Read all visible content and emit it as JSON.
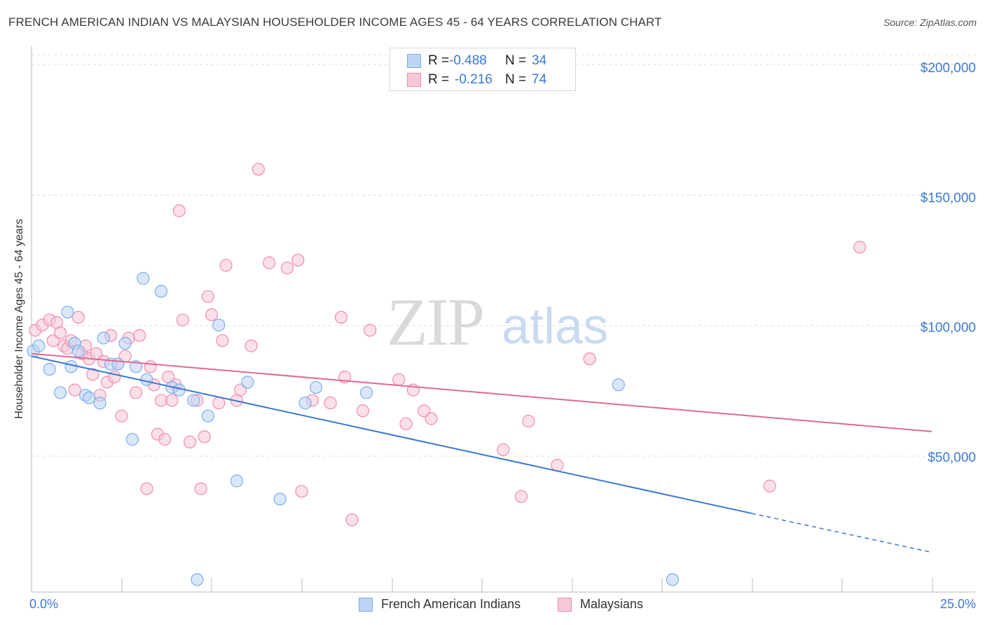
{
  "header": {
    "title": "FRENCH AMERICAN INDIAN VS MALAYSIAN HOUSEHOLDER INCOME AGES 45 - 64 YEARS CORRELATION CHART",
    "source": "Source: ZipAtlas.com"
  },
  "watermark": {
    "zip": "ZIP",
    "atlas": "atlas"
  },
  "legend": {
    "rows": [
      {
        "r_label": "R =",
        "r_value": "-0.488",
        "n_label": "N =",
        "n_value": "34",
        "color": "#7aaeea",
        "fill": "#bcd4f5"
      },
      {
        "r_label": "R =",
        "r_value": "-0.216",
        "n_label": "N =",
        "n_value": "74",
        "color": "#ef8cad",
        "fill": "#f8c7d6"
      }
    ]
  },
  "bottom_legend": {
    "series1": "French American Indians",
    "series2": "Malaysians"
  },
  "colors": {
    "blue": "#3a77d0",
    "blue_fill": "#bcd4f5",
    "pink": "#e0688f",
    "pink_fill": "#f8c7d6",
    "tick_text": "#3b79d2",
    "grid": "#dddddd"
  },
  "chart_data": {
    "type": "scatter",
    "title": "FRENCH AMERICAN INDIAN VS MALAYSIAN HOUSEHOLDER INCOME AGES 45 - 64 YEARS CORRELATION CHART",
    "xlabel": "",
    "ylabel": "Householder Income Ages 45 - 64 years",
    "xlim": [
      0,
      25
    ],
    "ylim": [
      0,
      205000
    ],
    "x_tick_labels": [
      "0.0%",
      "25.0%"
    ],
    "y_ticks": [
      50000,
      100000,
      150000,
      200000
    ],
    "y_tick_labels": [
      "$50,000",
      "$100,000",
      "$150,000",
      "$200,000"
    ],
    "grid": true,
    "series": [
      {
        "name": "French American Indians",
        "r": -0.488,
        "n": 34,
        "trend": {
          "x0": 0,
          "y0": 89000,
          "x1": 20,
          "y1": 28500,
          "dash_to_x": 25,
          "dash_to_y": 13500
        },
        "points": [
          [
            0.05,
            91000
          ],
          [
            0.2,
            93000
          ],
          [
            0.5,
            84000
          ],
          [
            0.8,
            75000
          ],
          [
            1.0,
            106000
          ],
          [
            1.2,
            94000
          ],
          [
            1.1,
            85000
          ],
          [
            1.3,
            91000
          ],
          [
            1.5,
            74000
          ],
          [
            1.6,
            73000
          ],
          [
            1.9,
            71000
          ],
          [
            2.0,
            96000
          ],
          [
            2.2,
            86000
          ],
          [
            2.4,
            86000
          ],
          [
            2.6,
            94000
          ],
          [
            2.8,
            57000
          ],
          [
            2.9,
            85000
          ],
          [
            3.1,
            119000
          ],
          [
            3.2,
            80000
          ],
          [
            3.6,
            114000
          ],
          [
            3.9,
            77000
          ],
          [
            4.1,
            76000
          ],
          [
            4.5,
            72000
          ],
          [
            4.6,
            3000
          ],
          [
            4.9,
            66000
          ],
          [
            5.2,
            101000
          ],
          [
            5.7,
            41000
          ],
          [
            6.0,
            79000
          ],
          [
            6.9,
            34000
          ],
          [
            7.6,
            71000
          ],
          [
            7.9,
            77000
          ],
          [
            9.3,
            75000
          ],
          [
            16.3,
            78000
          ],
          [
            17.8,
            3000
          ]
        ]
      },
      {
        "name": "Malaysians",
        "r": -0.216,
        "n": 74,
        "trend": {
          "x0": 0,
          "y0": 90000,
          "x1": 25,
          "y1": 60000
        },
        "points": [
          [
            0.1,
            99000
          ],
          [
            0.3,
            101000
          ],
          [
            0.5,
            103000
          ],
          [
            0.6,
            95000
          ],
          [
            0.7,
            102000
          ],
          [
            0.8,
            98000
          ],
          [
            0.9,
            93000
          ],
          [
            1.0,
            92000
          ],
          [
            1.1,
            95000
          ],
          [
            1.2,
            76000
          ],
          [
            1.3,
            104000
          ],
          [
            1.4,
            90000
          ],
          [
            1.5,
            93000
          ],
          [
            1.6,
            88000
          ],
          [
            1.7,
            82000
          ],
          [
            1.8,
            90000
          ],
          [
            1.9,
            74000
          ],
          [
            2.0,
            87000
          ],
          [
            2.1,
            79000
          ],
          [
            2.2,
            97000
          ],
          [
            2.3,
            81000
          ],
          [
            2.4,
            86000
          ],
          [
            2.5,
            66000
          ],
          [
            2.6,
            89000
          ],
          [
            2.7,
            96000
          ],
          [
            2.9,
            75000
          ],
          [
            3.0,
            97000
          ],
          [
            3.2,
            38000
          ],
          [
            3.3,
            85000
          ],
          [
            3.4,
            78000
          ],
          [
            3.5,
            59000
          ],
          [
            3.6,
            72000
          ],
          [
            3.7,
            57000
          ],
          [
            3.8,
            81000
          ],
          [
            3.9,
            72000
          ],
          [
            4.0,
            78000
          ],
          [
            4.2,
            103000
          ],
          [
            4.1,
            145000
          ],
          [
            4.4,
            56000
          ],
          [
            4.6,
            72000
          ],
          [
            4.7,
            38000
          ],
          [
            4.8,
            58000
          ],
          [
            4.9,
            112000
          ],
          [
            5.0,
            105000
          ],
          [
            5.2,
            71000
          ],
          [
            5.3,
            95000
          ],
          [
            5.4,
            124000
          ],
          [
            5.7,
            72000
          ],
          [
            5.8,
            76000
          ],
          [
            6.1,
            93000
          ],
          [
            6.3,
            161000
          ],
          [
            6.6,
            125000
          ],
          [
            7.1,
            123000
          ],
          [
            7.4,
            126000
          ],
          [
            7.5,
            37000
          ],
          [
            7.8,
            72000
          ],
          [
            8.3,
            71000
          ],
          [
            8.6,
            104000
          ],
          [
            8.7,
            81000
          ],
          [
            8.9,
            26000
          ],
          [
            9.2,
            68000
          ],
          [
            9.4,
            99000
          ],
          [
            10.2,
            80000
          ],
          [
            10.4,
            63000
          ],
          [
            10.6,
            76000
          ],
          [
            10.9,
            68000
          ],
          [
            11.1,
            65000
          ],
          [
            13.1,
            53000
          ],
          [
            13.6,
            35000
          ],
          [
            13.8,
            64000
          ],
          [
            14.6,
            47000
          ],
          [
            15.5,
            88000
          ],
          [
            20.5,
            39000
          ],
          [
            23.0,
            131000
          ]
        ]
      }
    ]
  }
}
